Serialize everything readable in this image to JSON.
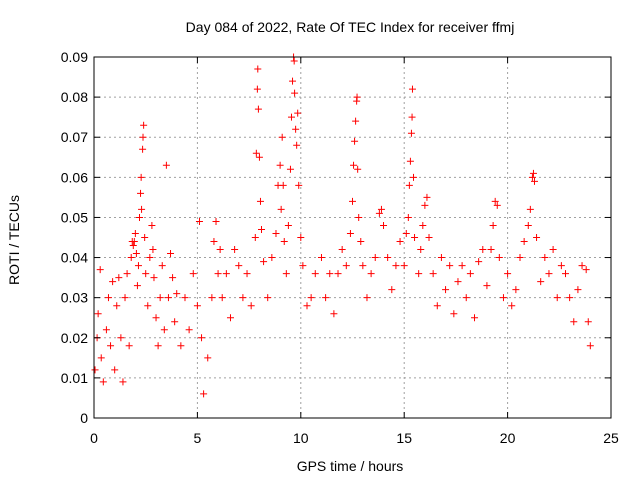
{
  "chart_data": {
    "type": "scatter",
    "title": "Day 084 of 2022, Rate Of TEC Index for receiver ffmj",
    "xlabel": "GPS time / hours",
    "ylabel": "ROTI / TECUs",
    "xlim": [
      0,
      25
    ],
    "ylim": [
      0,
      0.09
    ],
    "xticks": [
      0,
      5,
      10,
      15,
      20,
      25
    ],
    "xtick_labels": [
      "0",
      "5",
      "10",
      "15",
      "20",
      "25"
    ],
    "yticks": [
      0,
      0.01,
      0.02,
      0.03,
      0.04,
      0.05,
      0.06,
      0.07,
      0.08,
      0.09
    ],
    "ytick_labels": [
      "0",
      "0.01",
      "0.02",
      "0.03",
      "0.04",
      "0.05",
      "0.06",
      "0.07",
      "0.08",
      "0.09"
    ],
    "grid": true,
    "marker": "plus",
    "color": "#ff0000",
    "series": [
      {
        "name": "ROTI",
        "points": [
          [
            0.05,
            0.012
          ],
          [
            0.15,
            0.02
          ],
          [
            0.2,
            0.026
          ],
          [
            0.3,
            0.037
          ],
          [
            0.35,
            0.015
          ],
          [
            0.45,
            0.009
          ],
          [
            0.6,
            0.022
          ],
          [
            0.7,
            0.03
          ],
          [
            0.8,
            0.018
          ],
          [
            0.9,
            0.034
          ],
          [
            1.0,
            0.012
          ],
          [
            1.1,
            0.028
          ],
          [
            1.2,
            0.035
          ],
          [
            1.3,
            0.02
          ],
          [
            1.4,
            0.009
          ],
          [
            1.5,
            0.03
          ],
          [
            1.6,
            0.036
          ],
          [
            1.7,
            0.018
          ],
          [
            1.8,
            0.04
          ],
          [
            1.85,
            0.044
          ],
          [
            1.9,
            0.043
          ],
          [
            1.95,
            0.044
          ],
          [
            2.0,
            0.046
          ],
          [
            2.05,
            0.041
          ],
          [
            2.1,
            0.033
          ],
          [
            2.15,
            0.038
          ],
          [
            2.2,
            0.05
          ],
          [
            2.25,
            0.056
          ],
          [
            2.28,
            0.06
          ],
          [
            2.3,
            0.052
          ],
          [
            2.35,
            0.067
          ],
          [
            2.37,
            0.07
          ],
          [
            2.4,
            0.073
          ],
          [
            2.45,
            0.045
          ],
          [
            2.5,
            0.036
          ],
          [
            2.6,
            0.028
          ],
          [
            2.7,
            0.04
          ],
          [
            2.8,
            0.048
          ],
          [
            2.85,
            0.042
          ],
          [
            2.9,
            0.035
          ],
          [
            3.0,
            0.025
          ],
          [
            3.1,
            0.018
          ],
          [
            3.2,
            0.03
          ],
          [
            3.3,
            0.038
          ],
          [
            3.4,
            0.022
          ],
          [
            3.5,
            0.063
          ],
          [
            3.6,
            0.03
          ],
          [
            3.7,
            0.041
          ],
          [
            3.8,
            0.035
          ],
          [
            3.9,
            0.024
          ],
          [
            4.0,
            0.031
          ],
          [
            4.2,
            0.018
          ],
          [
            4.4,
            0.03
          ],
          [
            4.6,
            0.022
          ],
          [
            4.8,
            0.036
          ],
          [
            5.0,
            0.028
          ],
          [
            5.1,
            0.049
          ],
          [
            5.2,
            0.02
          ],
          [
            5.3,
            0.006
          ],
          [
            5.5,
            0.015
          ],
          [
            5.7,
            0.03
          ],
          [
            5.8,
            0.044
          ],
          [
            5.9,
            0.049
          ],
          [
            6.0,
            0.036
          ],
          [
            6.1,
            0.042
          ],
          [
            6.2,
            0.03
          ],
          [
            6.4,
            0.036
          ],
          [
            6.6,
            0.025
          ],
          [
            6.8,
            0.042
          ],
          [
            7.0,
            0.038
          ],
          [
            7.2,
            0.03
          ],
          [
            7.4,
            0.036
          ],
          [
            7.6,
            0.028
          ],
          [
            7.8,
            0.045
          ],
          [
            7.85,
            0.066
          ],
          [
            7.9,
            0.082
          ],
          [
            7.92,
            0.087
          ],
          [
            7.95,
            0.077
          ],
          [
            8.0,
            0.065
          ],
          [
            8.05,
            0.054
          ],
          [
            8.1,
            0.047
          ],
          [
            8.2,
            0.039
          ],
          [
            8.4,
            0.03
          ],
          [
            8.6,
            0.04
          ],
          [
            8.8,
            0.046
          ],
          [
            8.9,
            0.058
          ],
          [
            9.0,
            0.063
          ],
          [
            9.05,
            0.052
          ],
          [
            9.1,
            0.07
          ],
          [
            9.15,
            0.058
          ],
          [
            9.2,
            0.044
          ],
          [
            9.3,
            0.036
          ],
          [
            9.4,
            0.048
          ],
          [
            9.5,
            0.062
          ],
          [
            9.55,
            0.075
          ],
          [
            9.6,
            0.084
          ],
          [
            9.65,
            0.09
          ],
          [
            9.68,
            0.089
          ],
          [
            9.7,
            0.081
          ],
          [
            9.75,
            0.072
          ],
          [
            9.8,
            0.068
          ],
          [
            9.85,
            0.076
          ],
          [
            9.9,
            0.058
          ],
          [
            10.0,
            0.045
          ],
          [
            10.1,
            0.038
          ],
          [
            10.3,
            0.028
          ],
          [
            10.5,
            0.03
          ],
          [
            10.7,
            0.036
          ],
          [
            11.0,
            0.04
          ],
          [
            11.2,
            0.03
          ],
          [
            11.4,
            0.036
          ],
          [
            11.6,
            0.026
          ],
          [
            11.8,
            0.036
          ],
          [
            12.0,
            0.042
          ],
          [
            12.2,
            0.038
          ],
          [
            12.4,
            0.046
          ],
          [
            12.5,
            0.054
          ],
          [
            12.55,
            0.063
          ],
          [
            12.6,
            0.069
          ],
          [
            12.65,
            0.074
          ],
          [
            12.7,
            0.079
          ],
          [
            12.72,
            0.08
          ],
          [
            12.75,
            0.062
          ],
          [
            12.8,
            0.05
          ],
          [
            12.9,
            0.044
          ],
          [
            13.0,
            0.038
          ],
          [
            13.2,
            0.03
          ],
          [
            13.4,
            0.036
          ],
          [
            13.6,
            0.04
          ],
          [
            13.8,
            0.051
          ],
          [
            13.9,
            0.052
          ],
          [
            14.0,
            0.048
          ],
          [
            14.2,
            0.04
          ],
          [
            14.4,
            0.032
          ],
          [
            14.6,
            0.038
          ],
          [
            14.8,
            0.044
          ],
          [
            15.0,
            0.038
          ],
          [
            15.1,
            0.046
          ],
          [
            15.2,
            0.05
          ],
          [
            15.25,
            0.058
          ],
          [
            15.3,
            0.064
          ],
          [
            15.35,
            0.071
          ],
          [
            15.38,
            0.075
          ],
          [
            15.4,
            0.082
          ],
          [
            15.45,
            0.06
          ],
          [
            15.5,
            0.045
          ],
          [
            15.7,
            0.036
          ],
          [
            15.8,
            0.042
          ],
          [
            15.9,
            0.048
          ],
          [
            16.0,
            0.053
          ],
          [
            16.1,
            0.055
          ],
          [
            16.2,
            0.045
          ],
          [
            16.4,
            0.036
          ],
          [
            16.6,
            0.028
          ],
          [
            16.8,
            0.04
          ],
          [
            17.0,
            0.032
          ],
          [
            17.2,
            0.038
          ],
          [
            17.4,
            0.026
          ],
          [
            17.6,
            0.034
          ],
          [
            17.8,
            0.038
          ],
          [
            18.0,
            0.03
          ],
          [
            18.2,
            0.036
          ],
          [
            18.4,
            0.025
          ],
          [
            18.6,
            0.039
          ],
          [
            18.8,
            0.042
          ],
          [
            19.0,
            0.033
          ],
          [
            19.2,
            0.042
          ],
          [
            19.3,
            0.048
          ],
          [
            19.4,
            0.054
          ],
          [
            19.5,
            0.053
          ],
          [
            19.6,
            0.04
          ],
          [
            19.8,
            0.03
          ],
          [
            20.0,
            0.036
          ],
          [
            20.2,
            0.028
          ],
          [
            20.4,
            0.032
          ],
          [
            20.6,
            0.04
          ],
          [
            20.8,
            0.044
          ],
          [
            21.0,
            0.048
          ],
          [
            21.1,
            0.052
          ],
          [
            21.2,
            0.06
          ],
          [
            21.25,
            0.061
          ],
          [
            21.3,
            0.059
          ],
          [
            21.4,
            0.045
          ],
          [
            21.6,
            0.034
          ],
          [
            21.8,
            0.04
          ],
          [
            22.0,
            0.036
          ],
          [
            22.2,
            0.042
          ],
          [
            22.4,
            0.03
          ],
          [
            22.6,
            0.038
          ],
          [
            22.8,
            0.036
          ],
          [
            23.0,
            0.03
          ],
          [
            23.2,
            0.024
          ],
          [
            23.4,
            0.032
          ],
          [
            23.6,
            0.038
          ],
          [
            23.8,
            0.037
          ],
          [
            23.9,
            0.024
          ],
          [
            24.0,
            0.018
          ]
        ]
      }
    ]
  }
}
